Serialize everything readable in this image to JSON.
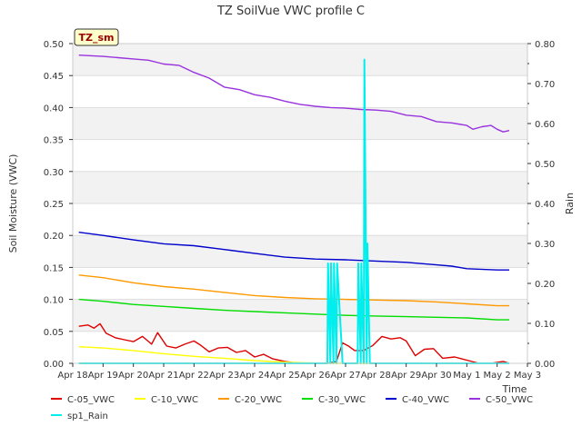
{
  "chart_data": {
    "type": "line",
    "title": "TZ SoilVue VWC profile C",
    "site_badge": "TZ_sm",
    "xlabel": "Time",
    "ylabel": "Soil Moisture (VWC)",
    "y2label": "Rain",
    "x_ticks": [
      "Apr 18",
      "Apr 19",
      "Apr 20",
      "Apr 21",
      "Apr 22",
      "Apr 23",
      "Apr 24",
      "Apr 25",
      "Apr 26",
      "Apr 27",
      "Apr 28",
      "Apr 29",
      "Apr 30",
      "May 1",
      "May 2",
      "May 3"
    ],
    "xlim": [
      0,
      15
    ],
    "ylim": [
      0,
      0.5
    ],
    "y_ticks": [
      "0.00",
      "0.05",
      "0.10",
      "0.15",
      "0.20",
      "0.25",
      "0.30",
      "0.35",
      "0.40",
      "0.45",
      "0.50"
    ],
    "y2lim": [
      0,
      0.8
    ],
    "y2_ticks": [
      "0.00",
      "0.10",
      "0.20",
      "0.30",
      "0.40",
      "0.50",
      "0.60",
      "0.70",
      "0.80"
    ],
    "grid": true,
    "legend_position": "bottom",
    "series": [
      {
        "name": "C-05_VWC",
        "color": "#dd0000",
        "axis": "left",
        "x": [
          0.2,
          0.5,
          0.7,
          0.9,
          1.1,
          1.4,
          1.7,
          2.0,
          2.3,
          2.6,
          2.8,
          3.1,
          3.4,
          3.7,
          4.0,
          4.2,
          4.5,
          4.8,
          5.1,
          5.4,
          5.7,
          6.0,
          6.3,
          6.6,
          7.0,
          7.3,
          7.6,
          8.0,
          8.4,
          8.7,
          8.9,
          9.1,
          9.3,
          9.6,
          9.9,
          10.2,
          10.5,
          10.8,
          11.0,
          11.3,
          11.6,
          11.9,
          12.2,
          12.6,
          13.0,
          13.4,
          13.8,
          14.2,
          14.4
        ],
        "y": [
          0.058,
          0.06,
          0.055,
          0.062,
          0.047,
          0.04,
          0.037,
          0.034,
          0.042,
          0.03,
          0.048,
          0.027,
          0.024,
          0.03,
          0.035,
          0.029,
          0.018,
          0.024,
          0.025,
          0.017,
          0.02,
          0.01,
          0.014,
          0.007,
          0.003,
          0.001,
          0.0,
          0.0,
          0.0,
          0.003,
          0.032,
          0.027,
          0.02,
          0.02,
          0.028,
          0.042,
          0.038,
          0.04,
          0.035,
          0.012,
          0.022,
          0.023,
          0.008,
          0.01,
          0.005,
          0.0,
          0.0,
          0.003,
          0.0
        ]
      },
      {
        "name": "C-10_VWC",
        "color": "#ffff00",
        "axis": "left",
        "x": [
          0.2,
          1.0,
          2.0,
          3.0,
          4.0,
          5.0,
          5.8,
          6.5,
          7.5,
          8.5,
          9.5,
          10.5,
          11.5,
          12.5,
          13.5,
          14.4
        ],
        "y": [
          0.026,
          0.024,
          0.02,
          0.015,
          0.011,
          0.008,
          0.005,
          0.003,
          0.001,
          0.0,
          0.0,
          0.0,
          0.0,
          0.0,
          0.0,
          0.0
        ]
      },
      {
        "name": "C-20_VWC",
        "color": "#ff9900",
        "axis": "left",
        "x": [
          0.2,
          1.0,
          2.0,
          3.0,
          4.0,
          5.0,
          6.0,
          7.0,
          8.0,
          9.0,
          10.0,
          11.0,
          12.0,
          13.0,
          14.0,
          14.4
        ],
        "y": [
          0.138,
          0.134,
          0.126,
          0.12,
          0.116,
          0.111,
          0.106,
          0.103,
          0.101,
          0.1,
          0.099,
          0.098,
          0.096,
          0.093,
          0.09,
          0.09
        ]
      },
      {
        "name": "C-30_VWC",
        "color": "#00dd00",
        "axis": "left",
        "x": [
          0.2,
          1.0,
          2.0,
          3.0,
          4.0,
          5.0,
          6.0,
          7.0,
          8.0,
          9.0,
          10.0,
          11.0,
          12.0,
          13.0,
          14.0,
          14.4
        ],
        "y": [
          0.1,
          0.097,
          0.092,
          0.089,
          0.086,
          0.083,
          0.081,
          0.079,
          0.077,
          0.075,
          0.074,
          0.073,
          0.072,
          0.071,
          0.068,
          0.068
        ]
      },
      {
        "name": "C-40_VWC",
        "color": "#0000cc",
        "axis": "left",
        "x": [
          0.2,
          1.0,
          2.0,
          3.0,
          4.0,
          5.0,
          6.0,
          7.0,
          8.0,
          9.0,
          10.0,
          11.0,
          12.0,
          12.5,
          13.0,
          14.0,
          14.4
        ],
        "y": [
          0.205,
          0.2,
          0.193,
          0.187,
          0.184,
          0.178,
          0.172,
          0.166,
          0.163,
          0.162,
          0.16,
          0.158,
          0.154,
          0.152,
          0.148,
          0.146,
          0.146
        ]
      },
      {
        "name": "C-50_VWC",
        "color": "#9933dd",
        "axis": "left",
        "x": [
          0.2,
          1.0,
          1.5,
          2.0,
          2.5,
          3.0,
          3.5,
          4.0,
          4.5,
          5.0,
          5.5,
          6.0,
          6.5,
          7.0,
          7.5,
          8.0,
          8.5,
          9.0,
          9.5,
          10.0,
          10.5,
          11.0,
          11.5,
          12.0,
          12.5,
          13.0,
          13.2,
          13.5,
          13.8,
          14.0,
          14.2,
          14.4
        ],
        "y": [
          0.482,
          0.48,
          0.478,
          0.476,
          0.474,
          0.468,
          0.466,
          0.455,
          0.446,
          0.432,
          0.428,
          0.42,
          0.416,
          0.41,
          0.405,
          0.402,
          0.4,
          0.399,
          0.397,
          0.396,
          0.394,
          0.388,
          0.386,
          0.378,
          0.376,
          0.372,
          0.366,
          0.37,
          0.372,
          0.366,
          0.362,
          0.364
        ]
      },
      {
        "name": "sp1_Rain",
        "color": "#00eeee",
        "axis": "right",
        "x": [
          0.2,
          8.4,
          8.42,
          8.5,
          8.52,
          8.6,
          8.62,
          8.7,
          8.72,
          8.9,
          9.4,
          9.42,
          9.5,
          9.52,
          9.6,
          9.62,
          9.7,
          9.72,
          9.8,
          9.82,
          14.4
        ],
        "y": [
          0.0,
          0.0,
          0.25,
          0.0,
          0.25,
          0.0,
          0.25,
          0.0,
          0.25,
          0.0,
          0.0,
          0.25,
          0.0,
          0.25,
          0.0,
          0.76,
          0.0,
          0.3,
          0.0,
          0.0,
          0.0
        ]
      }
    ]
  }
}
